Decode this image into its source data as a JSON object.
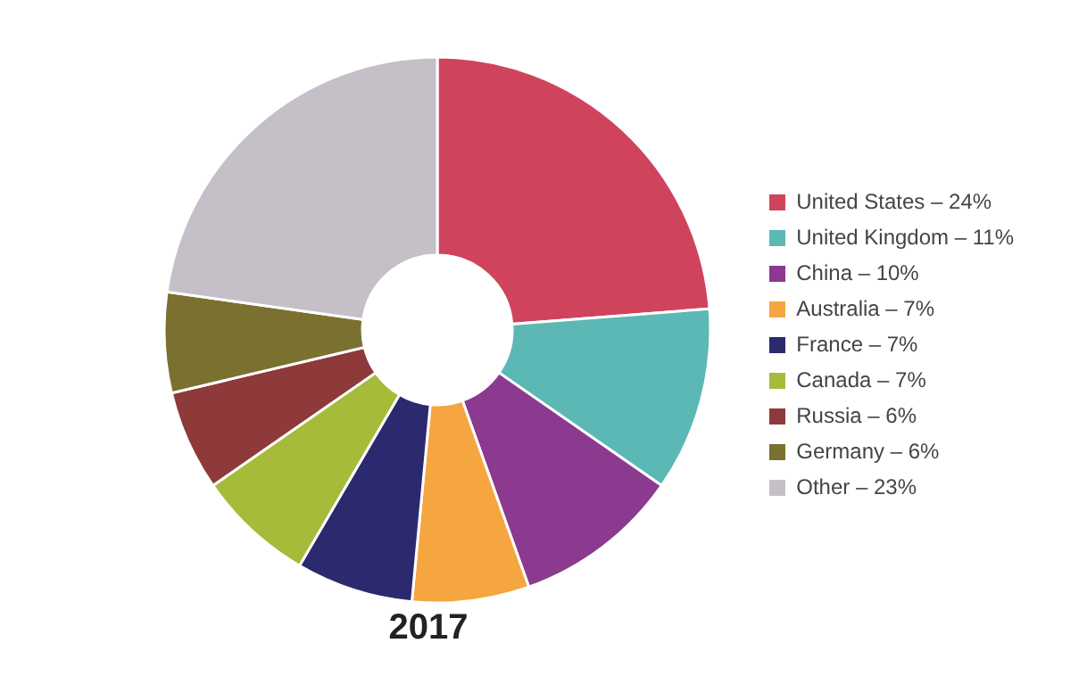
{
  "chart_data": {
    "type": "donut",
    "categories": [
      "United States – 24%",
      "United Kingdom – 11%",
      "China – 10%",
      "Australia – 7%",
      "France – 7%",
      "Canada – 7%",
      "Russia – 6%",
      "Germany – 6%",
      "Other – 23%"
    ],
    "values": [
      24,
      11,
      10,
      7,
      7,
      7,
      6,
      6,
      23
    ],
    "colors": [
      "#d0435d",
      "#5cb8b5",
      "#8b3a8f",
      "#f5a640",
      "#2b2a6e",
      "#a6bb3a",
      "#8e3a3a",
      "#7a7030",
      "#c5bfc8"
    ],
    "legend": "right",
    "annotations": [
      "2017"
    ]
  }
}
